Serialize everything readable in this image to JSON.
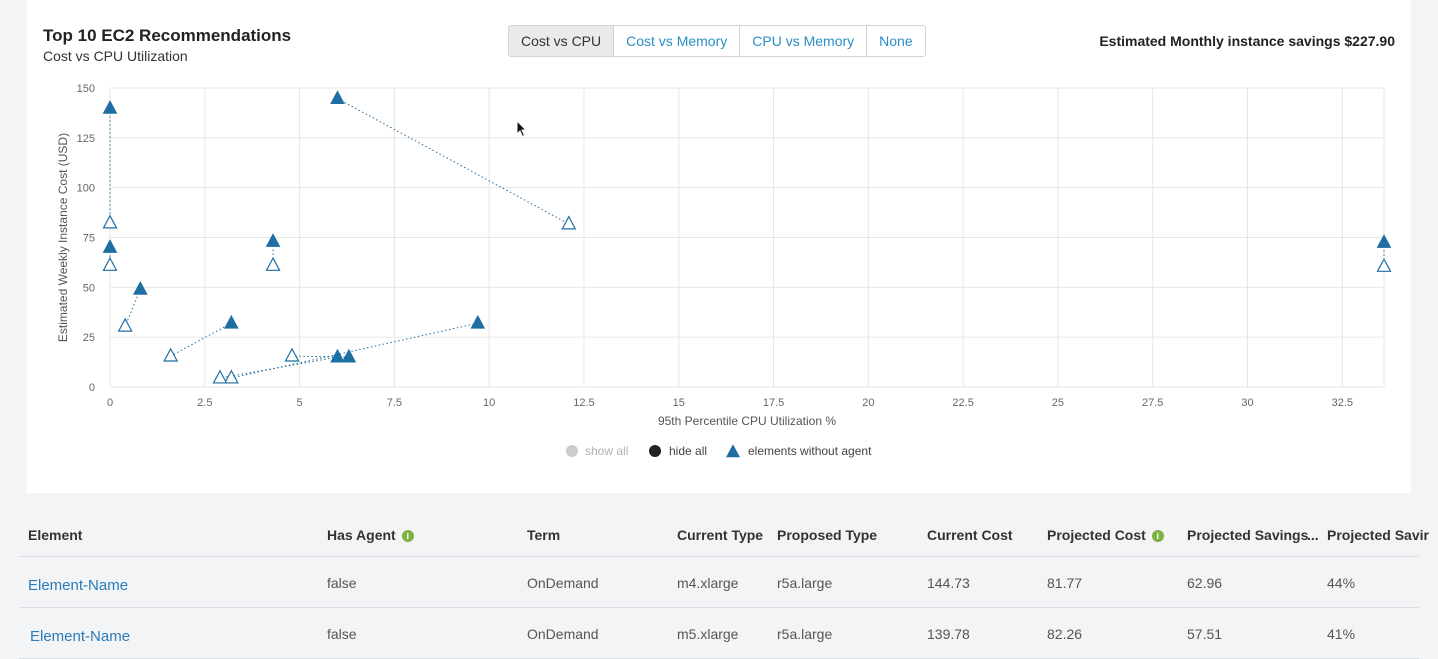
{
  "header": {
    "title": "Top 10 EC2 Recommendations",
    "subtitle": "Cost vs CPU Utilization",
    "savings": "Estimated Monthly instance savings $227.90"
  },
  "view_toggle": {
    "options": [
      "Cost vs CPU",
      "Cost vs Memory",
      "CPU vs Memory",
      "None"
    ],
    "selected": "Cost vs CPU"
  },
  "chart_data": {
    "type": "scatter",
    "xlabel": "95th Percentile CPU Utilization %",
    "ylabel": "Estimated Weekly Instance Cost (USD)",
    "xlim": [
      0,
      33.6
    ],
    "ylim": [
      0,
      150
    ],
    "x_ticks": [
      "0",
      "2.5",
      "5",
      "7.5",
      "10",
      "12.5",
      "15",
      "17.5",
      "20",
      "22.5",
      "25",
      "27.5",
      "30",
      "32.5"
    ],
    "y_ticks": [
      "0",
      "25",
      "50",
      "75",
      "100",
      "125",
      "150"
    ],
    "grid": true,
    "legend": [
      "show all",
      "hide all",
      "elements without agent"
    ],
    "legend_position": "bottom-center",
    "pairs": [
      {
        "current": [
          6.0,
          144.7
        ],
        "projected": [
          12.1,
          81.8
        ]
      },
      {
        "current": [
          0.0,
          139.8
        ],
        "projected": [
          0.0,
          82.3
        ]
      },
      {
        "current": [
          0.0,
          70.0
        ],
        "projected": [
          0.0,
          61.0
        ]
      },
      {
        "current": [
          4.3,
          73.0
        ],
        "projected": [
          4.3,
          61.0
        ]
      },
      {
        "current": [
          33.6,
          72.5
        ],
        "projected": [
          33.6,
          60.5
        ]
      },
      {
        "current": [
          0.8,
          49.0
        ],
        "projected": [
          0.4,
          30.5
        ]
      },
      {
        "current": [
          3.2,
          32.0
        ],
        "projected": [
          1.6,
          15.5
        ]
      },
      {
        "current": [
          9.7,
          32.0
        ],
        "projected": [
          3.2,
          4.5
        ]
      },
      {
        "current": [
          6.3,
          15.0
        ],
        "projected": [
          4.8,
          15.5
        ]
      },
      {
        "current": [
          6.0,
          15.0
        ],
        "projected": [
          2.9,
          4.5
        ]
      }
    ],
    "colors": {
      "marker": "#1f6ea3",
      "grid": "#e6e6e6",
      "axis_text": "#666666"
    }
  },
  "table": {
    "columns": [
      "Element",
      "Has Agent",
      "Term",
      "Current Type",
      "Proposed Type",
      "Current Cost",
      "Projected Cost",
      "Projected Savings",
      "...",
      "Projected Savir"
    ],
    "rows": [
      [
        "Element-Name",
        "false",
        "OnDemand",
        "m4.xlarge",
        "r5a.large",
        "144.73",
        "81.77",
        "62.96",
        "44%"
      ],
      [
        "Element-Name",
        "false",
        "OnDemand",
        "m5.xlarge",
        "r5a.large",
        "139.78",
        "82.26",
        "57.51",
        "41%"
      ]
    ]
  }
}
